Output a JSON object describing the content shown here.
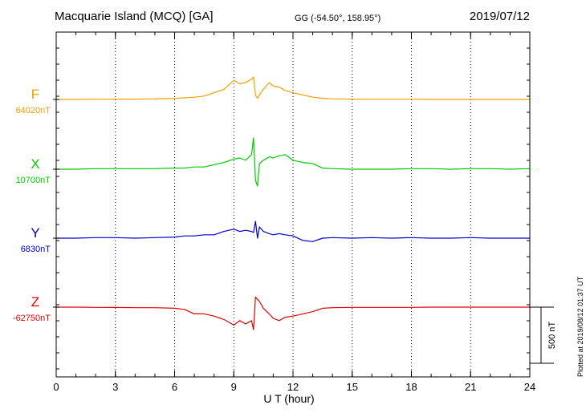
{
  "header": {
    "title": "Macquarie Island (MCQ)  [GA]",
    "coords": "GG (-54.50°, 158.95°)",
    "date": "2019/07/12"
  },
  "footer": {
    "x_title": "U T (hour)",
    "plot_stamp": "Plotted at 2019/08/12 01:37 UT"
  },
  "chart_data": {
    "type": "line",
    "title": "Macquarie Island (MCQ)  [GA]",
    "xlabel": "U T (hour)",
    "xlim": [
      0,
      24
    ],
    "x_ticks": [
      "0",
      "3",
      "6",
      "9",
      "12",
      "15",
      "18",
      "21",
      "24"
    ],
    "grid": true,
    "scale_bar": {
      "label": "500 nT",
      "value_nT": 500
    },
    "x": [
      0,
      1,
      2,
      3,
      4,
      5,
      6,
      6.5,
      7,
      7.5,
      8,
      8.5,
      9,
      9.3,
      9.6,
      9.9,
      10.0,
      10.1,
      10.2,
      10.3,
      10.5,
      10.8,
      11.0,
      11.3,
      11.6,
      12.0,
      12.5,
      13.0,
      13.5,
      14,
      15,
      16,
      17,
      18,
      19,
      20,
      21,
      22,
      23,
      24
    ],
    "series": [
      {
        "name": "F",
        "baseline_label": "64020nT",
        "color": "#f0a000",
        "values": [
          0,
          0,
          2,
          3,
          3,
          4,
          10,
          14,
          20,
          30,
          60,
          90,
          170,
          140,
          150,
          180,
          200,
          40,
          10,
          40,
          90,
          150,
          120,
          110,
          80,
          60,
          40,
          20,
          10,
          5,
          3,
          2,
          2,
          2,
          0,
          0,
          0,
          0,
          0,
          0
        ]
      },
      {
        "name": "X",
        "baseline_label": "10700nT",
        "color": "#00cc00",
        "values": [
          0,
          0,
          5,
          5,
          5,
          5,
          10,
          10,
          20,
          20,
          40,
          60,
          90,
          100,
          80,
          130,
          280,
          -100,
          -150,
          50,
          80,
          110,
          100,
          120,
          130,
          80,
          60,
          50,
          10,
          5,
          0,
          0,
          0,
          5,
          5,
          0,
          5,
          5,
          0,
          5
        ]
      },
      {
        "name": "Y",
        "baseline_label": "6830nT",
        "color": "#0000cc",
        "values": [
          0,
          0,
          5,
          5,
          0,
          5,
          10,
          20,
          20,
          30,
          30,
          60,
          80,
          60,
          70,
          60,
          50,
          150,
          0,
          100,
          60,
          40,
          30,
          40,
          30,
          20,
          -20,
          -30,
          0,
          5,
          0,
          5,
          0,
          5,
          0,
          0,
          5,
          0,
          0,
          0
        ]
      },
      {
        "name": "Z",
        "baseline_label": "-62750nT",
        "color": "#e00000",
        "values": [
          0,
          0,
          -2,
          -3,
          -5,
          -5,
          -10,
          -20,
          -60,
          -60,
          -80,
          -110,
          -160,
          -120,
          -150,
          -120,
          -200,
          90,
          70,
          50,
          -10,
          -60,
          -100,
          -120,
          -90,
          -80,
          -60,
          -40,
          -10,
          -5,
          -2,
          -2,
          -2,
          -2,
          0,
          0,
          0,
          0,
          0,
          0
        ]
      }
    ]
  }
}
